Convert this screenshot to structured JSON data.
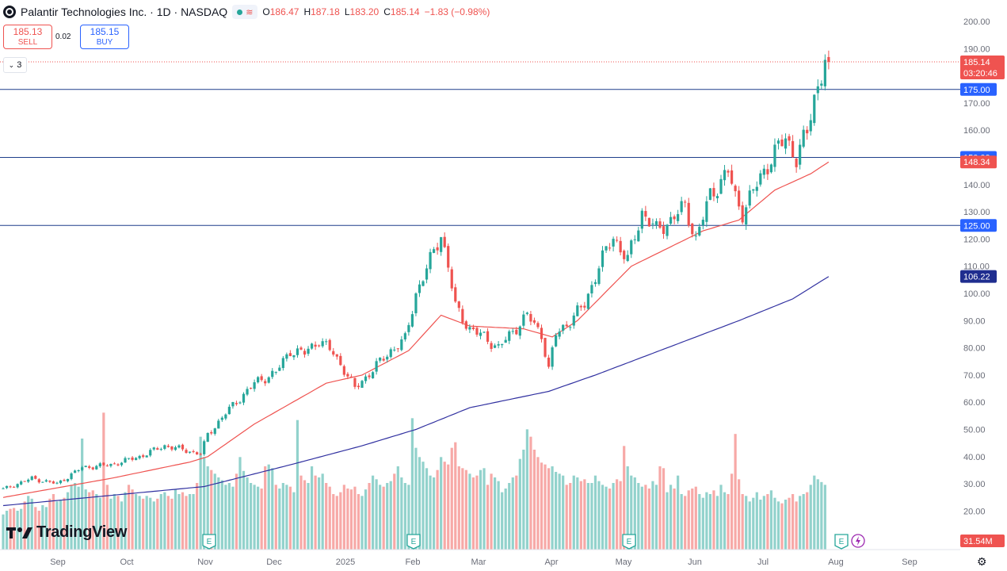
{
  "header": {
    "title": "Palantir Technologies Inc. · 1D · NASDAQ",
    "status_icon": "market-open-dot",
    "ohlc": [
      {
        "k": "O",
        "v": "186.47"
      },
      {
        "k": "H",
        "v": "187.18"
      },
      {
        "k": "L",
        "v": "183.20"
      },
      {
        "k": "C",
        "v": "185.14"
      },
      {
        "k": "",
        "v": "−1.83 (−0.98%)"
      }
    ]
  },
  "trade": {
    "sell_price": "185.13",
    "sell_label": "SELL",
    "spread": "0.02",
    "buy_price": "185.15",
    "buy_label": "BUY"
  },
  "indicators_toggle": "3",
  "logo_text": "TradingView",
  "colors": {
    "up": "#26a69a",
    "down": "#ef5350",
    "ma_fast": "#ef5350",
    "ma_slow": "#3030a0",
    "hline": "#1e3f8c",
    "hline_label": "#2962ff"
  },
  "chart_data": {
    "type": "candlestick",
    "ylim": [
      0,
      205
    ],
    "y_ticks": [
      20,
      30,
      40,
      50,
      60,
      70,
      80,
      90,
      100,
      110,
      120,
      130,
      140,
      150,
      160,
      170,
      180,
      190,
      200
    ],
    "x_ticks": [
      "Sep",
      "Oct",
      "Nov",
      "Dec",
      "2025",
      "Feb",
      "Mar",
      "Apr",
      "May",
      "Jun",
      "Jul",
      "Aug",
      "Sep"
    ],
    "price_anchors": [
      [
        0,
        28
      ],
      [
        8,
        32
      ],
      [
        15,
        30
      ],
      [
        22,
        36
      ],
      [
        30,
        37
      ],
      [
        38,
        40
      ],
      [
        45,
        44
      ],
      [
        52,
        42
      ],
      [
        55,
        41
      ],
      [
        57,
        48
      ],
      [
        62,
        56
      ],
      [
        70,
        67
      ],
      [
        76,
        71
      ],
      [
        80,
        79
      ],
      [
        84,
        78
      ],
      [
        88,
        83
      ],
      [
        92,
        78
      ],
      [
        95,
        72
      ],
      [
        98,
        65
      ],
      [
        103,
        72
      ],
      [
        108,
        79
      ],
      [
        112,
        83
      ],
      [
        115,
        100
      ],
      [
        119,
        112
      ],
      [
        122,
        122
      ],
      [
        124,
        110
      ],
      [
        126,
        95
      ],
      [
        130,
        87
      ],
      [
        134,
        84
      ],
      [
        138,
        80
      ],
      [
        142,
        86
      ],
      [
        146,
        92
      ],
      [
        150,
        85
      ],
      [
        152,
        72
      ],
      [
        154,
        85
      ],
      [
        158,
        90
      ],
      [
        162,
        96
      ],
      [
        166,
        110
      ],
      [
        170,
        121
      ],
      [
        174,
        112
      ],
      [
        178,
        130
      ],
      [
        182,
        123
      ],
      [
        186,
        127
      ],
      [
        190,
        132
      ],
      [
        193,
        120
      ],
      [
        197,
        136
      ],
      [
        202,
        145
      ],
      [
        204,
        135
      ],
      [
        206,
        130
      ],
      [
        210,
        140
      ],
      [
        214,
        150
      ],
      [
        218,
        157
      ],
      [
        221,
        150
      ],
      [
        224,
        159
      ],
      [
        226,
        172
      ],
      [
        229,
        186
      ],
      [
        230,
        185.14
      ]
    ],
    "ma_fast": [
      [
        0,
        25
      ],
      [
        30,
        32
      ],
      [
        52,
        38
      ],
      [
        57,
        40
      ],
      [
        70,
        52
      ],
      [
        90,
        67
      ],
      [
        100,
        70
      ],
      [
        113,
        79
      ],
      [
        122,
        92
      ],
      [
        130,
        88
      ],
      [
        145,
        87
      ],
      [
        153,
        84
      ],
      [
        160,
        90
      ],
      [
        175,
        110
      ],
      [
        195,
        123
      ],
      [
        205,
        127
      ],
      [
        215,
        138
      ],
      [
        225,
        144
      ],
      [
        230,
        148.34
      ]
    ],
    "ma_slow": [
      [
        0,
        22
      ],
      [
        40,
        27
      ],
      [
        56,
        29
      ],
      [
        80,
        37
      ],
      [
        100,
        44
      ],
      [
        115,
        50
      ],
      [
        130,
        58
      ],
      [
        152,
        64
      ],
      [
        165,
        70
      ],
      [
        185,
        80
      ],
      [
        205,
        90
      ],
      [
        220,
        98
      ],
      [
        230,
        106.22
      ]
    ],
    "volume_max_m": 150,
    "volumes_m": [
      38,
      42,
      44,
      45,
      42,
      44,
      52,
      58,
      55,
      46,
      42,
      48,
      46,
      55,
      60,
      52,
      54,
      56,
      62,
      70,
      72,
      68,
      120,
      65,
      62,
      64,
      60,
      56,
      148,
      70,
      55,
      60,
      58,
      52,
      62,
      70,
      65,
      60,
      58,
      55,
      58,
      56,
      52,
      55,
      60,
      62,
      58,
      55,
      65,
      60,
      62,
      58,
      60,
      60,
      72,
      122,
      100,
      90,
      86,
      82,
      78,
      75,
      70,
      72,
      68,
      82,
      100,
      85,
      78,
      72,
      70,
      68,
      66,
      90,
      92,
      88,
      70,
      66,
      72,
      70,
      68,
      62,
      140,
      80,
      75,
      72,
      90,
      80,
      78,
      82,
      72,
      68,
      60,
      58,
      62,
      70,
      66,
      65,
      68,
      60,
      58,
      65,
      72,
      80,
      76,
      70,
      68,
      72,
      74,
      82,
      90,
      78,
      72,
      70,
      142,
      110,
      100,
      95,
      88,
      80,
      78,
      86,
      100,
      95,
      92,
      110,
      116,
      90,
      88,
      86,
      82,
      78,
      80,
      86,
      88,
      70,
      82,
      78,
      74,
      62,
      66,
      72,
      78,
      80,
      98,
      108,
      130,
      122,
      108,
      100,
      94,
      92,
      88,
      90,
      84,
      82,
      80,
      70,
      72,
      80,
      78,
      74,
      76,
      72,
      72,
      80,
      74,
      70,
      68,
      66,
      72,
      76,
      74,
      112,
      90,
      80,
      78,
      72,
      68,
      70,
      66,
      74,
      70,
      90,
      88,
      62,
      70,
      66,
      80,
      60,
      58,
      64,
      66,
      68,
      60,
      56,
      62,
      60,
      64,
      58,
      70,
      62,
      60,
      82,
      125,
      76,
      60,
      58,
      52,
      56,
      62,
      54,
      58,
      60,
      64,
      56,
      52,
      50,
      54,
      56,
      60,
      52,
      58,
      60,
      62,
      70,
      80,
      76,
      73,
      70
    ],
    "last_price": "185.14",
    "countdown": "03:20:46",
    "ma_fast_value": "148.34",
    "ma_slow_value": "106.22",
    "volume_value": "31.54M",
    "horizontal_levels": [
      {
        "value": 175,
        "label": "175.00"
      },
      {
        "value": 150,
        "label": "150.00"
      },
      {
        "value": 125,
        "label": "125.00"
      }
    ],
    "earnings_markers": [
      "E",
      "E",
      "E",
      "E"
    ]
  }
}
